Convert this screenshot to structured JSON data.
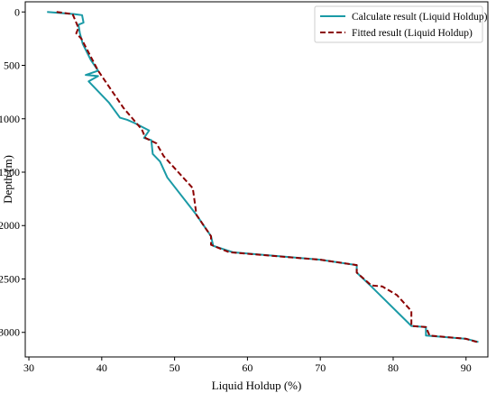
{
  "chart_data": {
    "type": "line",
    "title": "",
    "xlabel": "Liquid Holdup (%)",
    "ylabel": "Depth (m)",
    "xlim": [
      29.5,
      93
    ],
    "ylim": [
      3230,
      -95
    ],
    "y_inverted": true,
    "grid": false,
    "legend_position": "top-right",
    "xticks": [
      30,
      40,
      50,
      60,
      70,
      80,
      90
    ],
    "yticks": [
      0,
      500,
      1000,
      1500,
      2000,
      2500,
      3000
    ],
    "series": [
      {
        "name": "Calculate result (Liquid Holdup)",
        "color": "#1a9aa6",
        "style": "solid",
        "points": [
          [
            32.5,
            0
          ],
          [
            36.2,
            20
          ],
          [
            37.3,
            30
          ],
          [
            37.5,
            100
          ],
          [
            36.8,
            120
          ],
          [
            37.0,
            200
          ],
          [
            37.4,
            300
          ],
          [
            38.5,
            450
          ],
          [
            39.5,
            550
          ],
          [
            37.8,
            590
          ],
          [
            39.5,
            600
          ],
          [
            38.2,
            650
          ],
          [
            41.0,
            850
          ],
          [
            42.5,
            990
          ],
          [
            43.5,
            1010
          ],
          [
            44.5,
            1040
          ],
          [
            46.5,
            1110
          ],
          [
            45.8,
            1180
          ],
          [
            46.8,
            1200
          ],
          [
            47.0,
            1330
          ],
          [
            48.0,
            1400
          ],
          [
            49.0,
            1550
          ],
          [
            53.0,
            1900
          ],
          [
            54.0,
            2000
          ],
          [
            55.0,
            2100
          ],
          [
            55.3,
            2190
          ],
          [
            58.0,
            2250
          ],
          [
            70.0,
            2320
          ],
          [
            75.0,
            2370
          ],
          [
            75.0,
            2440
          ],
          [
            77.0,
            2570
          ],
          [
            82.5,
            2940
          ],
          [
            84.5,
            2950
          ],
          [
            84.5,
            3030
          ],
          [
            90.0,
            3060
          ],
          [
            91.7,
            3090
          ]
        ]
      },
      {
        "name": "Fitted result (Liquid Holdup)",
        "color": "#8b0000",
        "style": "dashed",
        "points": [
          [
            33.8,
            0
          ],
          [
            36.0,
            20
          ],
          [
            36.5,
            100
          ],
          [
            36.8,
            150
          ],
          [
            36.5,
            200
          ],
          [
            37.2,
            250
          ],
          [
            39.5,
            550
          ],
          [
            40.5,
            650
          ],
          [
            43.0,
            900
          ],
          [
            45.5,
            1100
          ],
          [
            46.0,
            1180
          ],
          [
            47.5,
            1230
          ],
          [
            48.5,
            1350
          ],
          [
            50.5,
            1500
          ],
          [
            52.5,
            1650
          ],
          [
            53.0,
            1900
          ],
          [
            54.0,
            2000
          ],
          [
            55.0,
            2100
          ],
          [
            55.0,
            2180
          ],
          [
            57.5,
            2250
          ],
          [
            70.0,
            2320
          ],
          [
            75.0,
            2370
          ],
          [
            75.0,
            2440
          ],
          [
            77.0,
            2560
          ],
          [
            78.5,
            2570
          ],
          [
            80.5,
            2650
          ],
          [
            82.5,
            2800
          ],
          [
            82.5,
            2940
          ],
          [
            84.5,
            2950
          ],
          [
            85.0,
            3030
          ],
          [
            90.0,
            3060
          ],
          [
            91.5,
            3090
          ]
        ]
      }
    ]
  }
}
